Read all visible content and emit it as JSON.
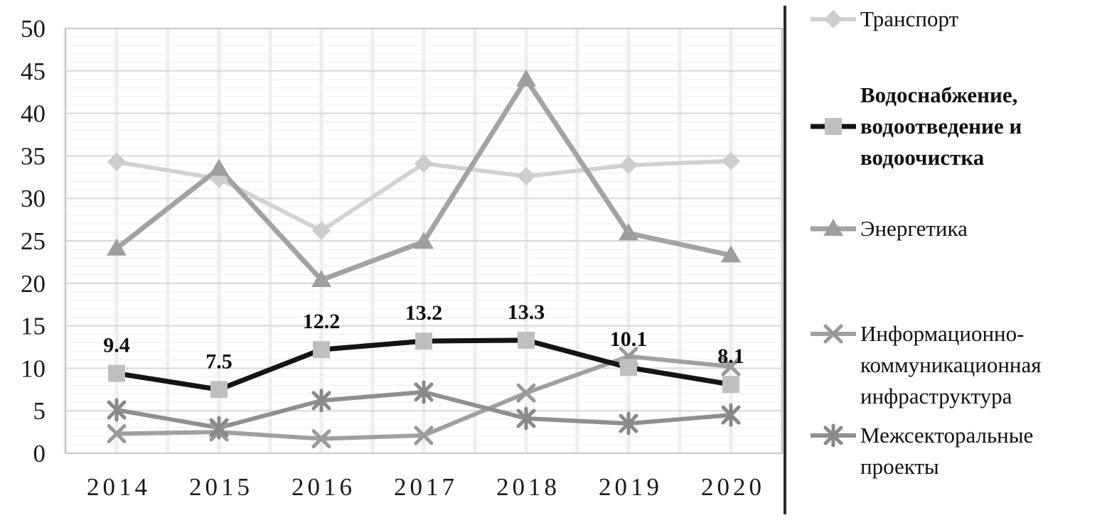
{
  "chart_data": {
    "type": "line",
    "title": "",
    "xlabel": "",
    "ylabel": "",
    "categories": [
      "2014",
      "2015",
      "2016",
      "2017",
      "2018",
      "2019",
      "2020"
    ],
    "y_axis": {
      "min": 0,
      "max": 50,
      "major_step": 5,
      "minor_step": 1
    },
    "y_ticks": [
      "0",
      "5",
      "10",
      "15",
      "20",
      "25",
      "30",
      "35",
      "40",
      "45",
      "50"
    ],
    "grid": {
      "horizontal_major": true,
      "horizontal_minor": true,
      "vertical": true
    },
    "legend_position": "right",
    "series": [
      {
        "name": "Транспорт",
        "marker": "diamond",
        "line_color": "#d2d2d2",
        "marker_color": "#cdcdcd",
        "line_width": 6,
        "values": [
          34.3,
          32.3,
          26.2,
          34.1,
          32.6,
          33.9,
          34.4
        ]
      },
      {
        "name": "Водоснабжение, водоотведение и водоочистка",
        "marker": "square",
        "line_color": "#141414",
        "marker_color": "#bfbfbf",
        "line_width": 7,
        "values": [
          9.4,
          7.5,
          12.2,
          13.2,
          13.3,
          10.1,
          8.1
        ],
        "data_labels": [
          "9.4",
          "7.5",
          "12.2",
          "13.2",
          "13.3",
          "10.1",
          "8.1"
        ]
      },
      {
        "name": "Энергетика",
        "marker": "triangle",
        "line_color": "#a3a3a3",
        "marker_color": "#9e9e9e",
        "line_width": 7,
        "values": [
          24.1,
          33.5,
          20.4,
          24.9,
          44.0,
          25.9,
          23.3
        ]
      },
      {
        "name": "Информационно-коммуникационная инфраструктура",
        "marker": "x",
        "line_color": "#a0a0a0",
        "marker_color": "#999999",
        "line_width": 6,
        "values": [
          2.3,
          2.5,
          1.7,
          2.1,
          7.1,
          11.4,
          10.2
        ]
      },
      {
        "name": "Межсекторальные проекты",
        "marker": "asterisk",
        "line_color": "#8f8f8f",
        "marker_color": "#898989",
        "line_width": 6,
        "values": [
          5.1,
          3.0,
          6.2,
          7.2,
          4.1,
          3.5,
          4.5
        ]
      }
    ]
  },
  "style": {
    "background": "#ffffff",
    "grid_major": "#d8d8d8",
    "grid_minor": "#f2f2f2",
    "grid_vertical": "#ededed",
    "plot_border": "#c8c8c8",
    "axis_bottom": "#b3b3b3",
    "axis_text_color": "#1a1a1a",
    "data_label_color": "#0d0d0d",
    "divider_color": "#2a2a2a"
  }
}
